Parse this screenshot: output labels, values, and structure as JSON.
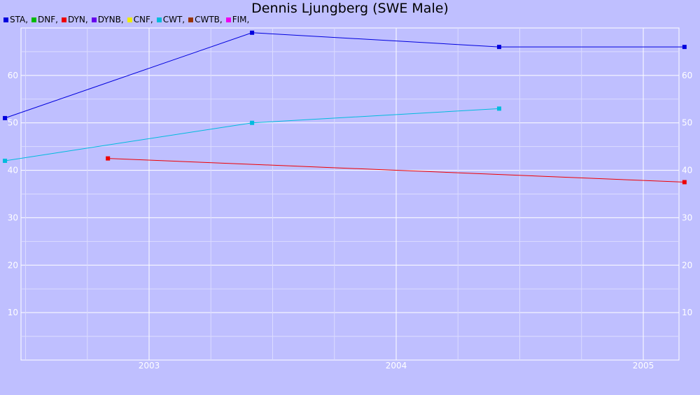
{
  "chart_data": {
    "type": "line",
    "title": "Dennis Ljungberg (SWE Male)",
    "xlabel": "",
    "ylabel": "",
    "x_ticks": [
      "2003",
      "2004",
      "2005"
    ],
    "y_ticks": [
      "10",
      "20",
      "30",
      "40",
      "50",
      "60"
    ],
    "ylim": [
      0,
      70
    ],
    "grid": true,
    "legend_position": "top-left",
    "legend": [
      {
        "label": "STA,",
        "color": "#0000dd"
      },
      {
        "label": "DNF,",
        "color": "#00bb00"
      },
      {
        "label": "DYN,",
        "color": "#ee0000"
      },
      {
        "label": "DYNB,",
        "color": "#6600ee"
      },
      {
        "label": "CNF,",
        "color": "#eeee00"
      },
      {
        "label": "CWT,",
        "color": "#00bbdd"
      },
      {
        "label": "CWTB,",
        "color": "#993300"
      },
      {
        "label": "FIM,",
        "color": "#ee00ee"
      }
    ],
    "series": [
      {
        "name": "STA",
        "color": "#0000dd",
        "points": [
          [
            "2002-06",
            51
          ],
          [
            "2003-06",
            69
          ],
          [
            "2004-06",
            66
          ],
          [
            "2005-03",
            66
          ]
        ]
      },
      {
        "name": "DYN",
        "color": "#ee0000",
        "points": [
          [
            "2002-11",
            42.5
          ],
          [
            "2005-03",
            37.5
          ]
        ]
      },
      {
        "name": "CWT",
        "color": "#00bbdd",
        "points": [
          [
            "2002-06",
            42
          ],
          [
            "2003-06",
            50
          ],
          [
            "2004-06",
            53
          ]
        ]
      }
    ]
  }
}
